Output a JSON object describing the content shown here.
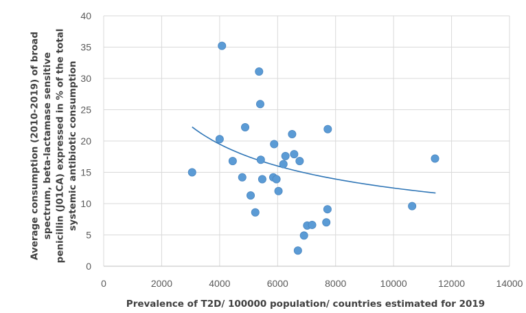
{
  "chart_data": {
    "type": "scatter",
    "xlabel": "Prevalence of T2D/ 100000 population/ countries estimated for 2019",
    "ylabel_lines": [
      "Average consumption (2010-2019) of broad",
      "spectrum, beta-lactamase sensitive",
      "penicillin (J01CA) expressed in % of the total",
      "systemic antibiotic consumption"
    ],
    "xlim": [
      0,
      14000
    ],
    "ylim": [
      0,
      40
    ],
    "x_ticks": [
      0,
      2000,
      4000,
      6000,
      8000,
      10000,
      12000,
      14000
    ],
    "y_ticks": [
      0,
      5,
      10,
      15,
      20,
      25,
      30,
      35,
      40
    ],
    "grid": true,
    "point_color": "#5b9bd5",
    "point_stroke": "#4a86c0",
    "trendline_color": "#2e75b6",
    "points": [
      {
        "x": 3050,
        "y": 15.0
      },
      {
        "x": 4000,
        "y": 20.3
      },
      {
        "x": 4080,
        "y": 35.2
      },
      {
        "x": 4450,
        "y": 16.8
      },
      {
        "x": 4780,
        "y": 14.2
      },
      {
        "x": 4880,
        "y": 22.2
      },
      {
        "x": 5070,
        "y": 11.3
      },
      {
        "x": 5230,
        "y": 8.6
      },
      {
        "x": 5360,
        "y": 31.1
      },
      {
        "x": 5400,
        "y": 25.9
      },
      {
        "x": 5420,
        "y": 17.0
      },
      {
        "x": 5470,
        "y": 13.9
      },
      {
        "x": 5850,
        "y": 14.2
      },
      {
        "x": 5880,
        "y": 19.5
      },
      {
        "x": 5960,
        "y": 13.9
      },
      {
        "x": 6030,
        "y": 12.0
      },
      {
        "x": 6200,
        "y": 16.3
      },
      {
        "x": 6270,
        "y": 17.6
      },
      {
        "x": 6500,
        "y": 21.1
      },
      {
        "x": 6570,
        "y": 17.9
      },
      {
        "x": 6700,
        "y": 2.5
      },
      {
        "x": 6760,
        "y": 16.8
      },
      {
        "x": 6910,
        "y": 4.9
      },
      {
        "x": 7020,
        "y": 6.5
      },
      {
        "x": 7190,
        "y": 6.6
      },
      {
        "x": 7680,
        "y": 7.0
      },
      {
        "x": 7720,
        "y": 9.1
      },
      {
        "x": 7730,
        "y": 21.9
      },
      {
        "x": 10640,
        "y": 9.6
      },
      {
        "x": 11430,
        "y": 17.2
      }
    ],
    "trendline": {
      "type": "power",
      "x_range": [
        3050,
        11450
      ],
      "coef": 1098,
      "exp": -0.486
    }
  }
}
